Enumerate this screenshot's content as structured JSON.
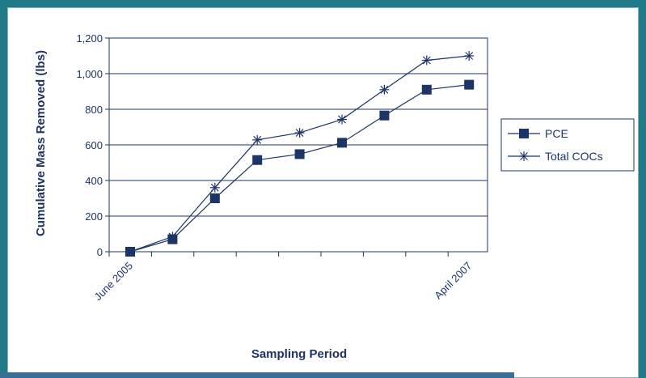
{
  "chart_data": {
    "type": "line",
    "title": "",
    "xlabel": "Sampling Period",
    "ylabel": "Cumulative Mass Removed (lbs)",
    "ylim": [
      0,
      1200
    ],
    "yticks": [
      "0",
      "200",
      "400",
      "600",
      "800",
      "1,000",
      "1,200"
    ],
    "xtick_labels": [
      "June 2005",
      "",
      "",
      "",
      "",
      "",
      "",
      "",
      "April 2007"
    ],
    "x_index": [
      0,
      1,
      2,
      3,
      4,
      5,
      6,
      7,
      8
    ],
    "grid": "horizontal",
    "legend_position": "right",
    "series": [
      {
        "name": "PCE",
        "marker": "square",
        "values": [
          0,
          70,
          300,
          515,
          548,
          612,
          765,
          910,
          938
        ]
      },
      {
        "name": "Total COCs",
        "marker": "star",
        "values": [
          0,
          85,
          360,
          628,
          668,
          743,
          910,
          1075,
          1100
        ]
      }
    ],
    "colors": {
      "line": "#1d3466",
      "frame": "#1f7a87",
      "bar": "#3a6f95"
    }
  }
}
